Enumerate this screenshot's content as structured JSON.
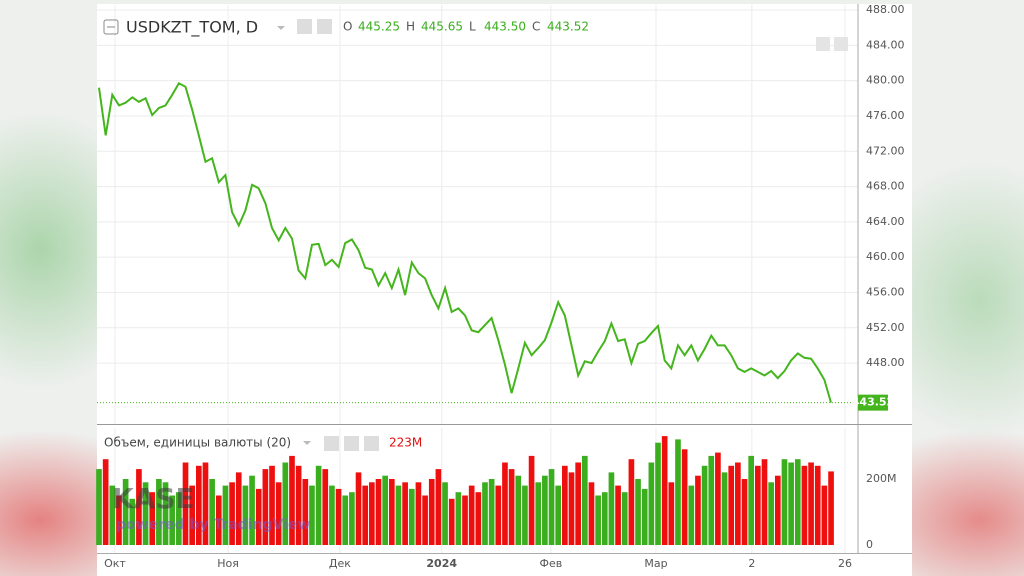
{
  "chart_data": [
    {
      "type": "line",
      "title": "USDKZT_TOM, D",
      "ohlc": [
        {
          "name": "O",
          "value": 445.25,
          "label": "445.25"
        },
        {
          "name": "H",
          "value": 445.65,
          "label": "445.65"
        },
        {
          "name": "L",
          "value": 443.5,
          "label": "443.50"
        },
        {
          "name": "C",
          "value": 443.52,
          "label": "443.52"
        }
      ],
      "x": [
        0,
        1,
        2,
        3,
        4,
        5,
        6,
        7,
        8,
        9,
        10,
        11,
        12,
        13,
        14,
        15,
        16,
        17,
        18,
        19,
        20,
        21,
        22,
        23,
        24,
        25,
        26,
        27,
        28,
        29,
        30,
        31,
        32,
        33,
        34,
        35,
        36,
        37,
        38,
        39,
        40,
        41,
        42,
        43,
        44,
        45,
        46,
        47,
        48,
        49,
        50,
        51,
        52,
        53,
        54,
        55,
        56,
        57,
        58,
        59,
        60,
        61,
        62,
        63,
        64,
        65,
        66,
        67,
        68,
        69,
        70,
        71,
        72,
        73,
        74,
        75,
        76,
        77,
        78,
        79,
        80,
        81,
        82,
        83,
        84,
        85,
        86,
        87,
        88,
        89,
        90,
        91,
        92,
        93,
        94,
        95,
        96,
        97,
        98,
        99,
        100,
        101,
        102,
        103,
        104,
        105,
        106,
        107,
        108,
        109,
        110
      ],
      "values": [
        479.2,
        473.8,
        478.4,
        477.2,
        477.5,
        478.1,
        477.6,
        478.0,
        476.1,
        476.9,
        477.2,
        478.4,
        479.7,
        479.3,
        476.7,
        473.8,
        470.8,
        471.2,
        468.5,
        469.3,
        465.1,
        463.6,
        465.3,
        468.2,
        467.8,
        466.1,
        463.3,
        461.9,
        463.3,
        462.1,
        458.5,
        457.6,
        461.4,
        461.5,
        459.1,
        459.7,
        458.9,
        461.6,
        462.0,
        460.8,
        458.8,
        458.6,
        456.8,
        458.2,
        456.5,
        458.6,
        455.7,
        459.4,
        458.2,
        457.6,
        455.7,
        454.2,
        456.5,
        453.8,
        454.2,
        453.4,
        451.7,
        451.5,
        452.3,
        453.1,
        450.6,
        447.8,
        444.6,
        447.4,
        450.3,
        448.9,
        449.7,
        450.6,
        452.6,
        454.9,
        453.4,
        450.0,
        446.6,
        448.2,
        448.0,
        449.3,
        450.5,
        452.5,
        450.5,
        450.7,
        448.0,
        450.2,
        450.5,
        451.4,
        452.2,
        448.3,
        447.4,
        450.0,
        448.9,
        450.0,
        448.3,
        449.6,
        451.1,
        450.0,
        450.0,
        448.9,
        447.4,
        447.0,
        447.4,
        447.0,
        446.6,
        447.1,
        446.3,
        447.1,
        448.3,
        449.1,
        448.6,
        448.5,
        447.4,
        446.1,
        443.52
      ],
      "color": "#44b51c",
      "xlim": [
        -0.3,
        114.05
      ],
      "ylim": [
        441.1,
        488.57
      ],
      "yticks": [
        {
          "value": 448,
          "label": "448.00"
        },
        {
          "value": 452,
          "label": "452.00"
        },
        {
          "value": 456,
          "label": "456.00"
        },
        {
          "value": 460,
          "label": "460.00"
        },
        {
          "value": 464,
          "label": "464.00"
        },
        {
          "value": 468,
          "label": "468.00"
        },
        {
          "value": 472,
          "label": "472.00"
        },
        {
          "value": 476,
          "label": "476.00"
        },
        {
          "value": 480,
          "label": "480.00"
        },
        {
          "value": 484,
          "label": "484.00"
        },
        {
          "value": 488,
          "label": "488.00"
        }
      ],
      "grid": true
    },
    {
      "type": "bar",
      "title": "Объем, единицы валюты (20)",
      "last": {
        "value": 223000000.0,
        "label": "223M"
      },
      "x": [
        0,
        1,
        2,
        3,
        4,
        5,
        6,
        7,
        8,
        9,
        10,
        11,
        12,
        13,
        14,
        15,
        16,
        17,
        18,
        19,
        20,
        21,
        22,
        23,
        24,
        25,
        26,
        27,
        28,
        29,
        30,
        31,
        32,
        33,
        34,
        35,
        36,
        37,
        38,
        39,
        40,
        41,
        42,
        43,
        44,
        45,
        46,
        47,
        48,
        49,
        50,
        51,
        52,
        53,
        54,
        55,
        56,
        57,
        58,
        59,
        60,
        61,
        62,
        63,
        64,
        65,
        66,
        67,
        68,
        69,
        70,
        71,
        72,
        73,
        74,
        75,
        76,
        77,
        78,
        79,
        80,
        81,
        82,
        83,
        84,
        85,
        86,
        87,
        88,
        89,
        90,
        91,
        92,
        93,
        94,
        95,
        96,
        97,
        98,
        99,
        100,
        101,
        102,
        103,
        104,
        105,
        106,
        107,
        108,
        109,
        110
      ],
      "values": [
        230000000.0,
        260000000.0,
        180000000.0,
        150000000.0,
        200000000.0,
        140000000.0,
        230000000.0,
        190000000.0,
        160000000.0,
        200000000.0,
        190000000.0,
        150000000.0,
        160000000.0,
        250000000.0,
        180000000.0,
        240000000.0,
        250000000.0,
        200000000.0,
        150000000.0,
        180000000.0,
        190000000.0,
        220000000.0,
        180000000.0,
        210000000.0,
        170000000.0,
        230000000.0,
        240000000.0,
        190000000.0,
        250000000.0,
        270000000.0,
        240000000.0,
        200000000.0,
        180000000.0,
        240000000.0,
        230000000.0,
        180000000.0,
        170000000.0,
        150000000.0,
        160000000.0,
        220000000.0,
        180000000.0,
        190000000.0,
        200000000.0,
        210000000.0,
        200000000.0,
        180000000.0,
        190000000.0,
        170000000.0,
        190000000.0,
        150000000.0,
        200000000.0,
        230000000.0,
        190000000.0,
        140000000.0,
        160000000.0,
        150000000.0,
        180000000.0,
        160000000.0,
        190000000.0,
        200000000.0,
        180000000.0,
        250000000.0,
        230000000.0,
        210000000.0,
        180000000.0,
        270000000.0,
        190000000.0,
        210000000.0,
        230000000.0,
        180000000.0,
        240000000.0,
        220000000.0,
        250000000.0,
        270000000.0,
        190000000.0,
        150000000.0,
        160000000.0,
        220000000.0,
        180000000.0,
        160000000.0,
        260000000.0,
        200000000.0,
        170000000.0,
        250000000.0,
        310000000.0,
        330000000.0,
        190000000.0,
        320000000.0,
        290000000.0,
        180000000.0,
        210000000.0,
        240000000.0,
        270000000.0,
        280000000.0,
        220000000.0,
        240000000.0,
        250000000.0,
        200000000.0,
        270000000.0,
        240000000.0,
        260000000.0,
        190000000.0,
        210000000.0,
        260000000.0,
        250000000.0,
        260000000.0,
        240000000.0,
        250000000.0,
        240000000.0,
        180000000.0,
        223000000.0
      ],
      "colors": [
        "#3aae1e",
        "#ee0f0f",
        "#3aae1e",
        "#ee0f0f",
        "#3aae1e",
        "#3aae1e",
        "#ee0f0f",
        "#3aae1e",
        "#ee0f0f",
        "#3aae1e",
        "#3aae1e",
        "#3aae1e",
        "#3aae1e",
        "#ee0f0f",
        "#ee0f0f",
        "#ee0f0f",
        "#ee0f0f",
        "#3aae1e",
        "#ee0f0f",
        "#3aae1e",
        "#ee0f0f",
        "#ee0f0f",
        "#3aae1e",
        "#3aae1e",
        "#ee0f0f",
        "#ee0f0f",
        "#ee0f0f",
        "#ee0f0f",
        "#3aae1e",
        "#ee0f0f",
        "#ee0f0f",
        "#ee0f0f",
        "#3aae1e",
        "#3aae1e",
        "#ee0f0f",
        "#3aae1e",
        "#ee0f0f",
        "#3aae1e",
        "#3aae1e",
        "#ee0f0f",
        "#ee0f0f",
        "#ee0f0f",
        "#ee0f0f",
        "#3aae1e",
        "#ee0f0f",
        "#3aae1e",
        "#ee0f0f",
        "#3aae1e",
        "#ee0f0f",
        "#ee0f0f",
        "#ee0f0f",
        "#ee0f0f",
        "#3aae1e",
        "#ee0f0f",
        "#3aae1e",
        "#ee0f0f",
        "#ee0f0f",
        "#ee0f0f",
        "#3aae1e",
        "#3aae1e",
        "#ee0f0f",
        "#ee0f0f",
        "#ee0f0f",
        "#3aae1e",
        "#3aae1e",
        "#ee0f0f",
        "#3aae1e",
        "#3aae1e",
        "#3aae1e",
        "#3aae1e",
        "#ee0f0f",
        "#ee0f0f",
        "#ee0f0f",
        "#3aae1e",
        "#ee0f0f",
        "#3aae1e",
        "#3aae1e",
        "#3aae1e",
        "#ee0f0f",
        "#3aae1e",
        "#ee0f0f",
        "#3aae1e",
        "#3aae1e",
        "#3aae1e",
        "#3aae1e",
        "#ee0f0f",
        "#ee0f0f",
        "#3aae1e",
        "#ee0f0f",
        "#3aae1e",
        "#ee0f0f",
        "#3aae1e",
        "#3aae1e",
        "#ee0f0f",
        "#3aae1e",
        "#ee0f0f",
        "#ee0f0f",
        "#ee0f0f",
        "#3aae1e",
        "#ee0f0f",
        "#ee0f0f",
        "#3aae1e",
        "#ee0f0f",
        "#3aae1e",
        "#3aae1e",
        "#3aae1e",
        "#ee0f0f",
        "#ee0f0f",
        "#ee0f0f",
        "#ee0f0f",
        "#ee0f0f"
      ],
      "xlim": [
        -0.3,
        114.05
      ],
      "ylim": [
        -24200000.0,
        354500000.0
      ],
      "yticks": [
        0,
        {
          "value": 200000000.0,
          "label": "200M"
        }
      ],
      "xticks": [
        {
          "value": 2.4,
          "label": "Окт"
        },
        {
          "value": 19.4,
          "label": "Ноя"
        },
        {
          "value": 36.2,
          "label": "Дек"
        },
        {
          "value": 51.5,
          "label": "2024"
        },
        {
          "value": 67.9,
          "label": "Фев"
        },
        {
          "value": 83.7,
          "label": "Мар"
        },
        {
          "value": 98.1,
          "label": "2"
        },
        {
          "value": 112.1,
          "label": "26"
        }
      ],
      "grid": true
    }
  ],
  "watermark": {
    "logo": "KASE",
    "text": "powered by TradingView"
  }
}
